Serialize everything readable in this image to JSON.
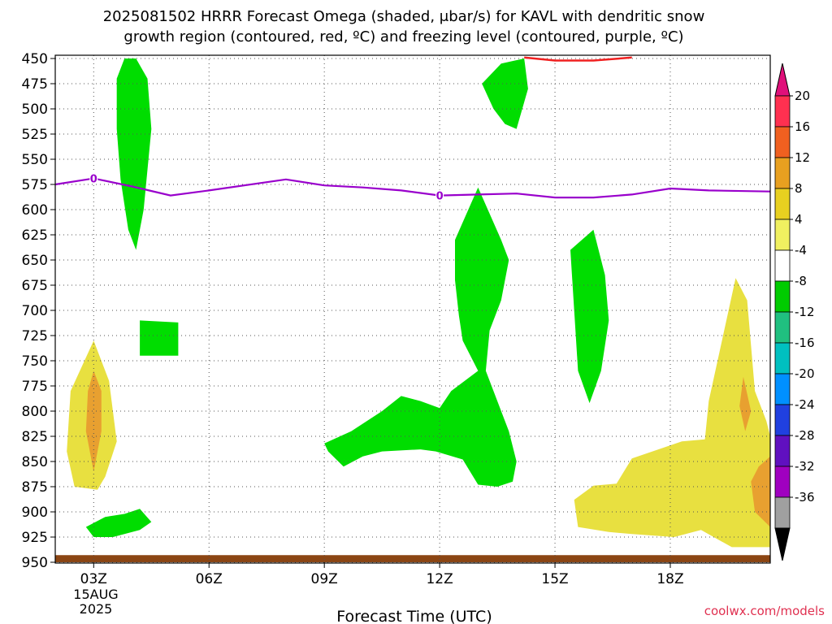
{
  "title_line1": "2025081502 HRRR Forecast Omega (shaded, μbar/s) for KAVL with dendritic snow",
  "title_line2": "growth region (contoured, red, ºC) and freezing level (contoured, purple, ºC)",
  "xlabel": "Forecast Time (UTC)",
  "watermark": "coolwx.com/models",
  "chart_data": {
    "type": "time-height contour",
    "xlim": [
      2,
      20.6
    ],
    "ylim": [
      450,
      950
    ],
    "y_axis": "pressure (mb), inverted",
    "x_ticks": [
      {
        "value": 3,
        "label": "03Z"
      },
      {
        "value": 6,
        "label": "06Z"
      },
      {
        "value": 9,
        "label": "09Z"
      },
      {
        "value": 12,
        "label": "12Z"
      },
      {
        "value": 15,
        "label": "15Z"
      },
      {
        "value": 18,
        "label": "18Z"
      }
    ],
    "x_date_label": [
      "15AUG",
      "2025"
    ],
    "y_ticks": [
      450,
      475,
      500,
      525,
      550,
      575,
      600,
      625,
      650,
      675,
      700,
      725,
      750,
      775,
      800,
      825,
      850,
      875,
      900,
      925,
      950
    ],
    "grid": true,
    "colorbar": {
      "labels": [
        "20",
        "16",
        "12",
        "8",
        "4",
        "-4",
        "-8",
        "-12",
        "-16",
        "-20",
        "-24",
        "-28",
        "-32",
        "-36"
      ],
      "colors": [
        "#ff3050",
        "#f06020",
        "#e8a020",
        "#e8d020",
        "#f0f060",
        "#ffffff",
        "#00cc00",
        "#20c080",
        "#00c0c0",
        "#0090ff",
        "#2040e0",
        "#6010c0",
        "#a000c0",
        "#a0a0a0"
      ],
      "top_arrow_color": "#e0107a",
      "bottom_arrow_color": "#000000"
    },
    "freezing_level": {
      "color": "#9900cc",
      "label": "0",
      "points": [
        [
          2,
          575
        ],
        [
          3,
          569
        ],
        [
          4,
          577
        ],
        [
          5,
          586
        ],
        [
          6,
          581
        ],
        [
          8,
          570
        ],
        [
          9,
          576
        ],
        [
          10,
          578
        ],
        [
          11,
          581
        ],
        [
          12,
          586
        ],
        [
          13,
          585
        ],
        [
          14,
          584
        ],
        [
          15,
          588
        ],
        [
          16,
          588
        ],
        [
          17,
          585
        ],
        [
          18,
          579
        ],
        [
          19,
          581
        ],
        [
          20.6,
          582
        ]
      ],
      "label_at": [
        [
          3,
          569
        ],
        [
          12,
          586
        ]
      ]
    },
    "dgz_contour": {
      "color": "#f02020",
      "points": [
        [
          14.2,
          449
        ],
        [
          15,
          452
        ],
        [
          16,
          452
        ],
        [
          17,
          449
        ]
      ]
    },
    "regions": [
      {
        "color": "#00dd00",
        "points": [
          [
            3.6,
            470
          ],
          [
            3.8,
            450
          ],
          [
            4.1,
            450
          ],
          [
            4.4,
            470
          ],
          [
            4.5,
            520
          ],
          [
            4.3,
            600
          ],
          [
            4.1,
            640
          ],
          [
            3.9,
            620
          ],
          [
            3.7,
            570
          ],
          [
            3.6,
            520
          ]
        ]
      },
      {
        "color": "#00dd00",
        "points": [
          [
            13.1,
            475
          ],
          [
            13.6,
            455
          ],
          [
            14.2,
            450
          ],
          [
            14.3,
            480
          ],
          [
            14.0,
            520
          ],
          [
            13.7,
            515
          ],
          [
            13.4,
            500
          ]
        ]
      },
      {
        "color": "#00dd00",
        "points": [
          [
            4.2,
            710
          ],
          [
            5.2,
            712
          ],
          [
            5.2,
            745
          ],
          [
            4.2,
            745
          ]
        ]
      },
      {
        "color": "#00dd00",
        "points": [
          [
            2.8,
            915
          ],
          [
            3.3,
            905
          ],
          [
            3.8,
            902
          ],
          [
            4.2,
            897
          ],
          [
            4.5,
            910
          ],
          [
            4.2,
            918
          ],
          [
            3.5,
            925
          ],
          [
            3.0,
            925
          ]
        ]
      },
      {
        "color": "#00dd00",
        "points": [
          [
            12.4,
            630
          ],
          [
            13.0,
            578
          ],
          [
            13.6,
            630
          ],
          [
            13.8,
            650
          ],
          [
            13.6,
            690
          ],
          [
            13.3,
            720
          ],
          [
            13.2,
            760
          ],
          [
            13.8,
            820
          ],
          [
            14.0,
            850
          ],
          [
            13.9,
            870
          ],
          [
            13.5,
            875
          ],
          [
            13.0,
            873
          ],
          [
            12.6,
            848
          ],
          [
            11.9,
            840
          ],
          [
            11.5,
            838
          ],
          [
            10.5,
            840
          ],
          [
            10.0,
            845
          ],
          [
            9.5,
            855
          ],
          [
            9.1,
            840
          ],
          [
            9.0,
            832
          ],
          [
            9.7,
            820
          ],
          [
            10.5,
            800
          ],
          [
            11.0,
            785
          ],
          [
            11.5,
            790
          ],
          [
            12.0,
            797
          ],
          [
            12.3,
            780
          ],
          [
            13.0,
            760
          ],
          [
            12.6,
            730
          ],
          [
            12.5,
            705
          ],
          [
            12.4,
            670
          ]
        ]
      },
      {
        "color": "#00dd00",
        "points": [
          [
            16.0,
            620
          ],
          [
            16.3,
            665
          ],
          [
            16.4,
            710
          ],
          [
            16.2,
            760
          ],
          [
            15.9,
            792
          ],
          [
            15.6,
            760
          ],
          [
            15.5,
            700
          ],
          [
            15.4,
            640
          ]
        ]
      },
      {
        "color": "#e8e040",
        "points": [
          [
            2.4,
            780
          ],
          [
            3.0,
            730
          ],
          [
            3.4,
            770
          ],
          [
            3.6,
            830
          ],
          [
            3.3,
            865
          ],
          [
            3.1,
            878
          ],
          [
            2.5,
            875
          ],
          [
            2.3,
            840
          ]
        ]
      },
      {
        "color": "#e8e040",
        "points": [
          [
            15.5,
            888
          ],
          [
            16.0,
            874
          ],
          [
            16.6,
            872
          ],
          [
            17.0,
            847
          ],
          [
            18.3,
            830
          ],
          [
            18.9,
            828
          ],
          [
            19.0,
            790
          ],
          [
            19.7,
            668
          ],
          [
            20.0,
            690
          ],
          [
            20.2,
            780
          ],
          [
            20.5,
            810
          ],
          [
            20.6,
            825
          ],
          [
            20.6,
            935
          ],
          [
            19.6,
            935
          ],
          [
            18.8,
            918
          ],
          [
            18.1,
            925
          ],
          [
            17.0,
            922
          ],
          [
            16.4,
            920
          ],
          [
            15.6,
            915
          ]
        ]
      },
      {
        "color": "#e8a030",
        "points": [
          [
            3.0,
            760
          ],
          [
            3.2,
            780
          ],
          [
            3.2,
            820
          ],
          [
            3.0,
            860
          ],
          [
            2.8,
            820
          ],
          [
            2.85,
            780
          ]
        ]
      },
      {
        "color": "#e8a030",
        "points": [
          [
            19.9,
            766
          ],
          [
            20.1,
            800
          ],
          [
            19.95,
            820
          ],
          [
            19.8,
            795
          ]
        ]
      },
      {
        "color": "#e8a030",
        "points": [
          [
            20.6,
            845
          ],
          [
            20.3,
            855
          ],
          [
            20.1,
            870
          ],
          [
            20.2,
            900
          ],
          [
            20.6,
            915
          ]
        ]
      },
      {
        "color": "#8b4513",
        "points": [
          [
            2.0,
            943
          ],
          [
            20.6,
            943
          ],
          [
            20.6,
            950
          ],
          [
            2.0,
            950
          ]
        ]
      }
    ]
  }
}
